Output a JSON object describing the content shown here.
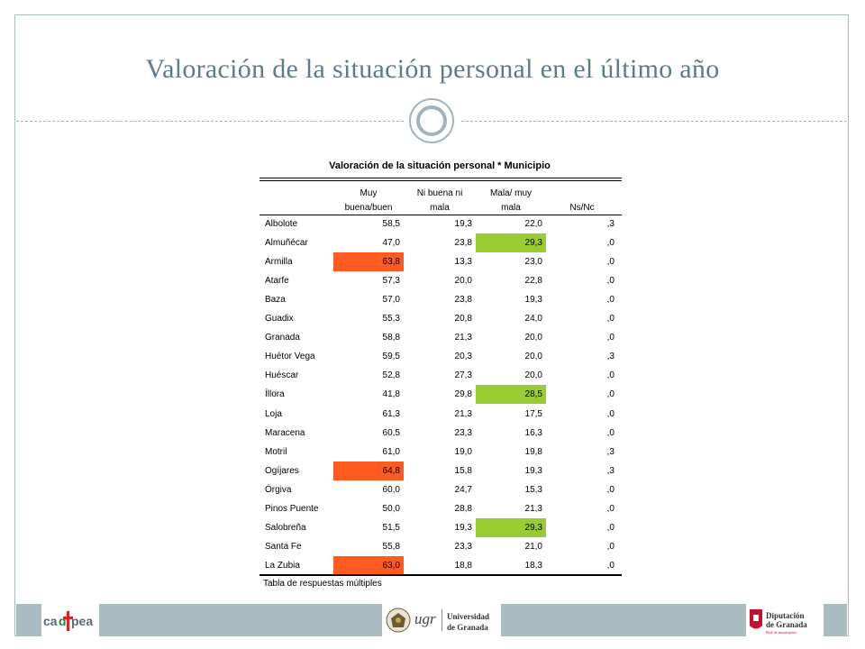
{
  "slide": {
    "title": "Valoración de la situación personal en el último año"
  },
  "table": {
    "title": "Valoración de la situación personal * Municipio",
    "headers": [
      "Muy buena/buen",
      "Ni buena ni mala",
      "Mala/ muy mala",
      "Ns/Nc"
    ],
    "header_lines": [
      [
        "Muy",
        "buena/buen"
      ],
      [
        "Ni buena ni",
        "mala"
      ],
      [
        "Mala/ muy",
        "mala"
      ],
      [
        "",
        "Ns/Nc"
      ]
    ],
    "rows": [
      {
        "municipio": "Albolote",
        "values": [
          "58,5",
          "19,3",
          "22,0",
          ",3"
        ],
        "highlight": null
      },
      {
        "municipio": "Almuñécar",
        "values": [
          "47,0",
          "23,8",
          "29,3",
          ",0"
        ],
        "highlight": 2
      },
      {
        "municipio": "Armilla",
        "values": [
          "63,8",
          "13,3",
          "23,0",
          ",0"
        ],
        "highlight": 0
      },
      {
        "municipio": "Atarfe",
        "values": [
          "57,3",
          "20,0",
          "22,8",
          ",0"
        ],
        "highlight": null
      },
      {
        "municipio": "Baza",
        "values": [
          "57,0",
          "23,8",
          "19,3",
          ",0"
        ],
        "highlight": null
      },
      {
        "municipio": "Guadix",
        "values": [
          "55,3",
          "20,8",
          "24,0",
          ",0"
        ],
        "highlight": null
      },
      {
        "municipio": "Granada",
        "values": [
          "58,8",
          "21,3",
          "20,0",
          ",0"
        ],
        "highlight": null
      },
      {
        "municipio": "Huétor Vega",
        "values": [
          "59,5",
          "20,3",
          "20,0",
          ",3"
        ],
        "highlight": null
      },
      {
        "municipio": "Huéscar",
        "values": [
          "52,8",
          "27,3",
          "20,0",
          ",0"
        ],
        "highlight": null
      },
      {
        "municipio": "Íllora",
        "values": [
          "41,8",
          "29,8",
          "28,5",
          ",0"
        ],
        "highlight": 2
      },
      {
        "municipio": "Loja",
        "values": [
          "61,3",
          "21,3",
          "17,5",
          ",0"
        ],
        "highlight": null
      },
      {
        "municipio": "Maracena",
        "values": [
          "60,5",
          "23,3",
          "16,3",
          ",0"
        ],
        "highlight": null
      },
      {
        "municipio": "Motril",
        "values": [
          "61,0",
          "19,0",
          "19,8",
          ",3"
        ],
        "highlight": null
      },
      {
        "municipio": "Ogíjares",
        "values": [
          "64,8",
          "15,8",
          "19,3",
          ",3"
        ],
        "highlight": 0
      },
      {
        "municipio": "Órgiva",
        "values": [
          "60,0",
          "24,7",
          "15,3",
          ",0"
        ],
        "highlight": null
      },
      {
        "municipio": "Pinos Puente",
        "values": [
          "50,0",
          "28,8",
          "21,3",
          ",0"
        ],
        "highlight": null
      },
      {
        "municipio": "Salobreña",
        "values": [
          "51,5",
          "19,3",
          "29,3",
          ",0"
        ],
        "highlight": 2
      },
      {
        "municipio": "Santa Fe",
        "values": [
          "55,8",
          "23,3",
          "21,0",
          ",0"
        ],
        "highlight": null
      },
      {
        "municipio": "La Zubia",
        "values": [
          "63,0",
          "18,8",
          "18,3",
          ",0"
        ],
        "highlight": 0
      }
    ],
    "footnote": "Tabla de respuestas múltiples"
  },
  "colors": {
    "high_highlight": "#ff5a1f",
    "low_highlight": "#99cc33",
    "accent": "#a9bcc2",
    "title_color": "#5d7c87"
  },
  "footer": {
    "logos": [
      {
        "name": "cadpea-logo",
        "text": "cadpea"
      },
      {
        "name": "ugr-logo",
        "text": "ugr",
        "text2": "Universidad",
        "text3": "de Granada"
      },
      {
        "name": "diputacion-logo",
        "text": "Diputación",
        "text2": "de Granada",
        "text3": "Red de municipios"
      }
    ]
  }
}
